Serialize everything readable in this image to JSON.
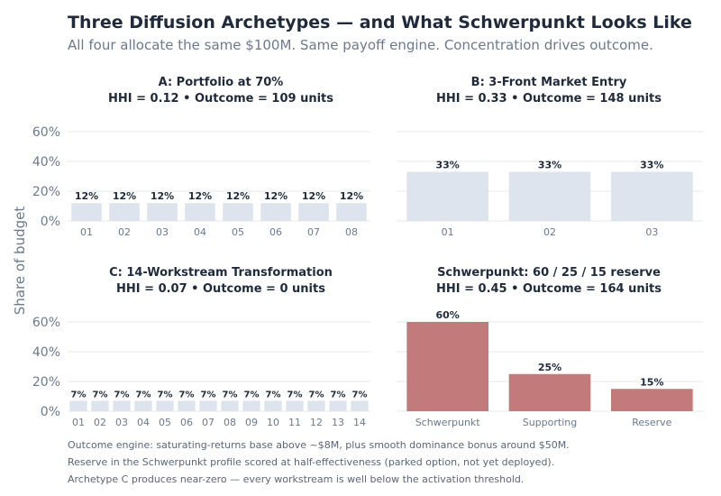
{
  "title": "Three Diffusion Archetypes — and What Schwerpunkt Looks Like",
  "subtitle": "All four allocate the same $100M. Same payoff engine. Concentration drives outcome.",
  "ylabel": "Share of budget",
  "footnotes": [
    "Outcome engine: saturating-returns base above ~$8M, plus smooth dominance bonus around $50M.",
    "Reserve in the Schwerpunkt profile scored at half-effectiveness (parked option, not yet deployed).",
    "Archetype C produces near-zero — every workstream is well below the activation threshold."
  ],
  "colors": {
    "muted_bar": "#dde4ee",
    "accent_bar": "#c27b7a",
    "grid": "#e6e9ee",
    "tick": "#6b7a8f",
    "label": "#1f2b3c"
  },
  "chart_data": [
    {
      "type": "bar",
      "title": "A: Portfolio at 70%",
      "subtitle": "HHI = 0.12  •  Outcome = 109 units",
      "categories": [
        "01",
        "02",
        "03",
        "04",
        "05",
        "06",
        "07",
        "08"
      ],
      "values": [
        12,
        12,
        12,
        12,
        12,
        12,
        12,
        12
      ],
      "value_labels": [
        "12%",
        "12%",
        "12%",
        "12%",
        "12%",
        "12%",
        "12%",
        "12%"
      ],
      "yticks": [
        "0%",
        "20%",
        "40%",
        "60%"
      ],
      "ylim": [
        0,
        65
      ],
      "color": "#dde4ee"
    },
    {
      "type": "bar",
      "title": "B: 3-Front Market Entry",
      "subtitle": "HHI = 0.33  •  Outcome = 148 units",
      "categories": [
        "01",
        "02",
        "03"
      ],
      "values": [
        33,
        33,
        33
      ],
      "value_labels": [
        "33%",
        "33%",
        "33%"
      ],
      "yticks": [],
      "ylim": [
        0,
        65
      ],
      "color": "#dde4ee"
    },
    {
      "type": "bar",
      "title": "C: 14-Workstream Transformation",
      "subtitle": "HHI = 0.07  •  Outcome = 0 units",
      "categories": [
        "01",
        "02",
        "03",
        "04",
        "05",
        "06",
        "07",
        "08",
        "09",
        "10",
        "11",
        "12",
        "13",
        "14"
      ],
      "values": [
        7,
        7,
        7,
        7,
        7,
        7,
        7,
        7,
        7,
        7,
        7,
        7,
        7,
        7
      ],
      "value_labels": [
        "7%",
        "7%",
        "7%",
        "7%",
        "7%",
        "7%",
        "7%",
        "7%",
        "7%",
        "7%",
        "7%",
        "7%",
        "7%",
        "7%"
      ],
      "yticks": [
        "0%",
        "20%",
        "40%",
        "60%"
      ],
      "ylim": [
        0,
        65
      ],
      "color": "#dde4ee"
    },
    {
      "type": "bar",
      "title": "Schwerpunkt: 60 / 25 / 15 reserve",
      "subtitle": "HHI = 0.45  •  Outcome = 164 units",
      "categories": [
        "Schwerpunkt",
        "Supporting",
        "Reserve"
      ],
      "values": [
        60,
        25,
        15
      ],
      "value_labels": [
        "60%",
        "25%",
        "15%"
      ],
      "yticks": [],
      "ylim": [
        0,
        65
      ],
      "color": "#c27b7a"
    }
  ]
}
